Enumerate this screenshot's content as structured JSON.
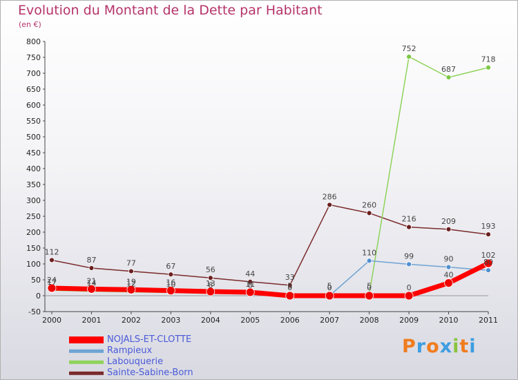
{
  "header": {
    "title": "Evolution du Montant de la Dette par Habitant",
    "subtitle": "(en €)"
  },
  "logo": {
    "text": "Proxiti",
    "letters": [
      {
        "char": "P",
        "color": "#f07c1e"
      },
      {
        "char": "r",
        "color": "#3d9de0"
      },
      {
        "char": "o",
        "color": "#f07c1e"
      },
      {
        "char": "x",
        "color": "#3d9de0"
      },
      {
        "char": "i",
        "color": "#8ac43f"
      },
      {
        "char": "t",
        "color": "#f07c1e"
      },
      {
        "char": "i",
        "color": "#3d9de0"
      }
    ]
  },
  "chart_data": {
    "type": "line",
    "title": "Evolution du Montant de la Dette par Habitant",
    "ylabel": "(en €)",
    "x": [
      "2000",
      "2001",
      "2002",
      "2003",
      "2004",
      "2005",
      "2006",
      "2007",
      "2008",
      "2009",
      "2010",
      "2011"
    ],
    "ylim": [
      -50,
      800
    ],
    "yticks": [
      -50,
      0,
      50,
      100,
      150,
      200,
      250,
      300,
      350,
      400,
      450,
      500,
      550,
      600,
      650,
      700,
      750,
      800
    ],
    "grid": false,
    "legend_position": "bottom-left",
    "series": [
      {
        "name": "NOJALS-ET-CLOTTE",
        "color": "#ff0000",
        "marker_color": "#ee0000",
        "stroke_width": 7,
        "marker_radius": 6,
        "values": [
          24,
          21,
          19,
          16,
          13,
          11,
          0,
          0,
          0,
          0,
          40,
          102
        ],
        "labels": [
          "24",
          "21",
          "19",
          "16",
          "13",
          "11",
          "0",
          "0",
          "0",
          "0",
          "40",
          "102"
        ]
      },
      {
        "name": "Rampieux",
        "color": "#6fa3d3",
        "marker_color": "#4f8fd0",
        "stroke_width": 1.5,
        "marker_radius": 3.5,
        "values": [
          null,
          null,
          null,
          null,
          null,
          null,
          null,
          0,
          110,
          99,
          90,
          80
        ],
        "labels": [
          "",
          "",
          "",
          "",
          "",
          "",
          "",
          "0",
          "110",
          "99",
          "90",
          "80"
        ]
      },
      {
        "name": "Labouquerie",
        "color": "#8ed35a",
        "marker_color": "#7cc843",
        "stroke_width": 1.5,
        "marker_radius": 3.5,
        "values": [
          17,
          14,
          12,
          10,
          8,
          8,
          5,
          5,
          5,
          752,
          687,
          718
        ],
        "labels": [
          "17",
          "14",
          "12",
          "10",
          "8",
          "8",
          "5",
          "5",
          "5",
          "752",
          "687",
          "718"
        ]
      },
      {
        "name": "Sainte-Sabine-Born",
        "color": "#7a2a2a",
        "marker_color": "#6b1f1f",
        "stroke_width": 1.5,
        "marker_radius": 3.5,
        "values": [
          112,
          87,
          77,
          67,
          56,
          44,
          33,
          286,
          260,
          216,
          209,
          193
        ],
        "labels": [
          "112",
          "87",
          "77",
          "67",
          "56",
          "44",
          "33",
          "286",
          "260",
          "216",
          "209",
          "193"
        ]
      }
    ]
  }
}
